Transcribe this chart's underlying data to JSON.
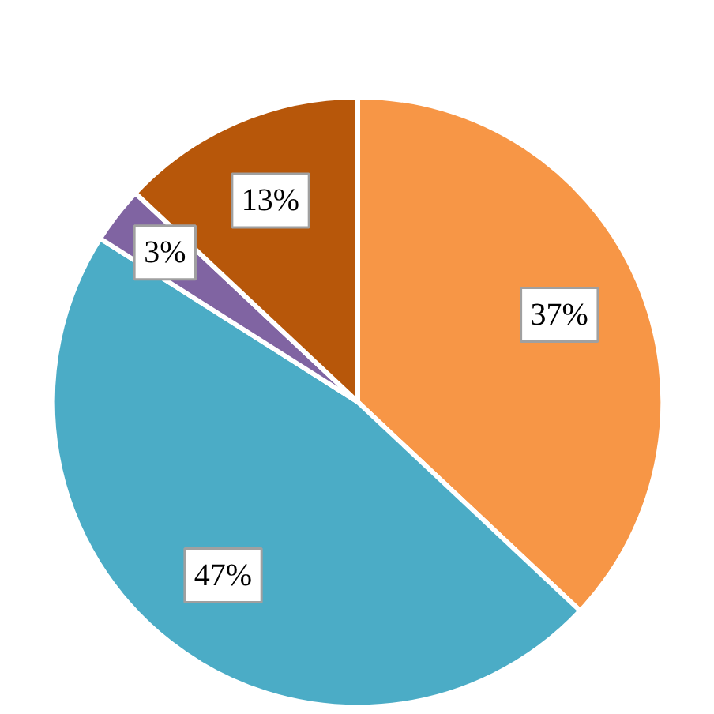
{
  "chart_data": {
    "type": "pie",
    "categories": [
      null,
      null,
      null,
      null
    ],
    "values": [
      37,
      47,
      3,
      13
    ],
    "colors": [
      "#f79646",
      "#4bacc6",
      "#8064a2",
      "#b7570a"
    ],
    "value_labels": [
      "37%",
      "47%",
      "3%",
      "13%"
    ]
  }
}
